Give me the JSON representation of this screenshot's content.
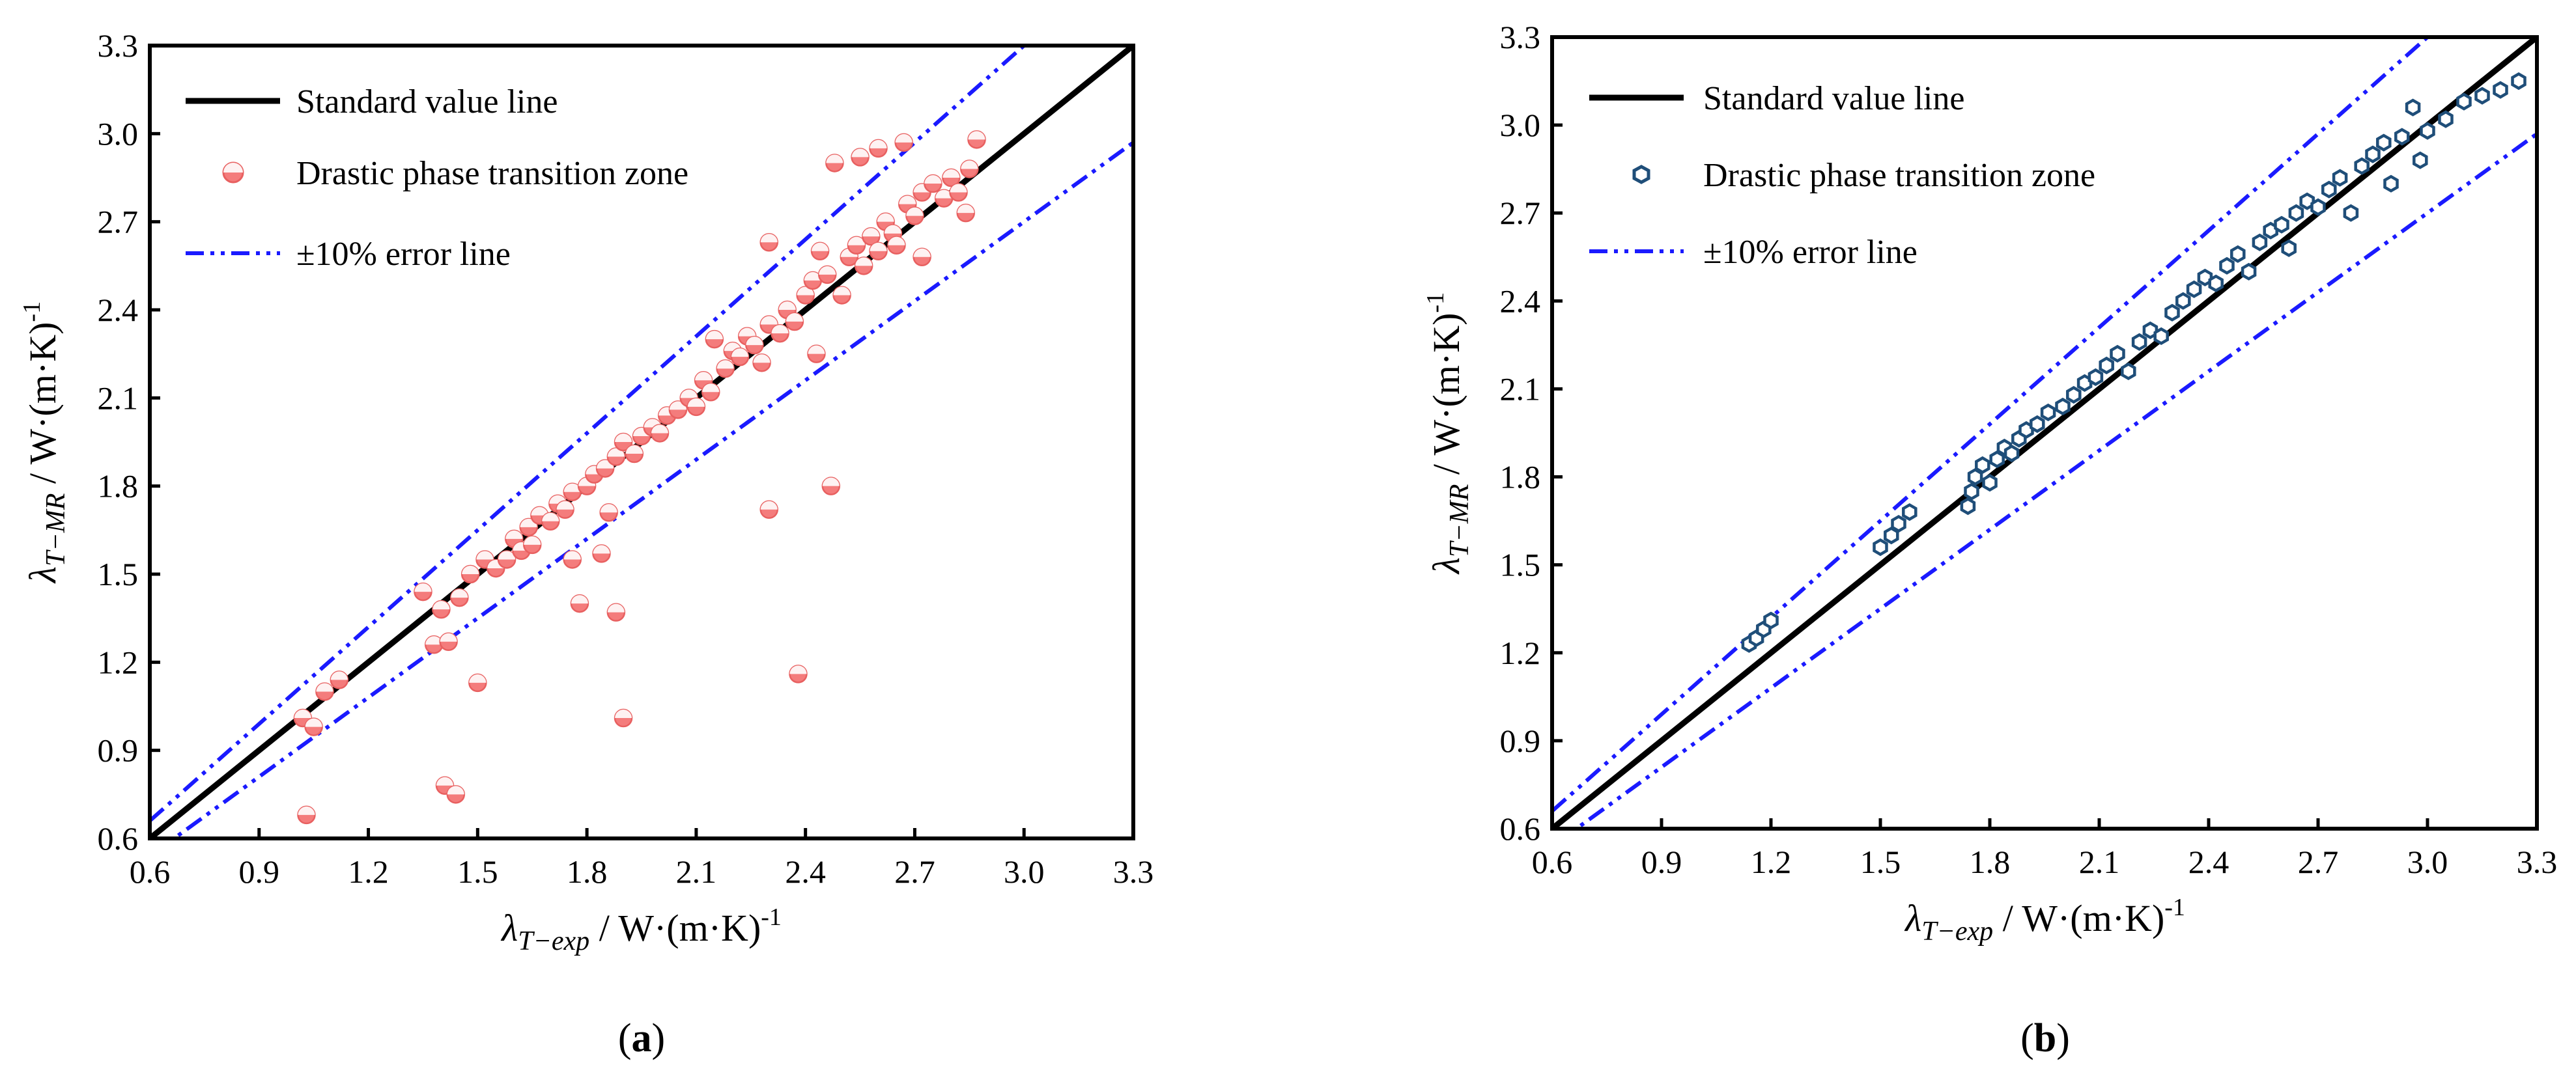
{
  "chart_data": [
    {
      "panel_label": "a",
      "type": "scatter",
      "xlabel": {
        "sym": "λ",
        "sub": "T−exp",
        "unit": " / W·(m·K)",
        "sup": "-1"
      },
      "ylabel": {
        "sym": "λ",
        "sub": "T−MR",
        "unit": " / W·(m·K)",
        "sup": "-1"
      },
      "xlim": [
        0.6,
        3.3
      ],
      "ylim": [
        0.6,
        3.3
      ],
      "ticks": [
        "0.6",
        "0.9",
        "1.2",
        "1.5",
        "1.8",
        "2.1",
        "2.4",
        "2.7",
        "3.0",
        "3.3"
      ],
      "grid": false,
      "legend_position": "top-left",
      "legend": [
        "Standard value line",
        "Drastic phase transition zone",
        "±10% error line"
      ],
      "colors": {
        "points_fill": "#f47c7c",
        "points_edge": "#e86060",
        "standard": "#000000",
        "error": "#1a1aff"
      },
      "series": [
        {
          "name": "Drastic phase transition zone",
          "points": [
            [
              1.03,
              0.68
            ],
            [
              1.02,
              1.01
            ],
            [
              1.05,
              0.98
            ],
            [
              1.08,
              1.1
            ],
            [
              1.12,
              1.14
            ],
            [
              1.35,
              1.44
            ],
            [
              1.38,
              1.26
            ],
            [
              1.42,
              1.27
            ],
            [
              1.41,
              0.78
            ],
            [
              1.44,
              0.75
            ],
            [
              1.4,
              1.38
            ],
            [
              1.45,
              1.42
            ],
            [
              1.5,
              1.13
            ],
            [
              1.48,
              1.5
            ],
            [
              1.52,
              1.55
            ],
            [
              1.55,
              1.52
            ],
            [
              1.58,
              1.55
            ],
            [
              1.6,
              1.62
            ],
            [
              1.62,
              1.58
            ],
            [
              1.64,
              1.66
            ],
            [
              1.65,
              1.6
            ],
            [
              1.67,
              1.7
            ],
            [
              1.7,
              1.68
            ],
            [
              1.72,
              1.74
            ],
            [
              1.74,
              1.72
            ],
            [
              1.76,
              1.55
            ],
            [
              1.76,
              1.78
            ],
            [
              1.78,
              1.4
            ],
            [
              1.8,
              1.8
            ],
            [
              1.82,
              1.84
            ],
            [
              1.84,
              1.57
            ],
            [
              1.85,
              1.86
            ],
            [
              1.86,
              1.71
            ],
            [
              1.88,
              1.37
            ],
            [
              1.88,
              1.9
            ],
            [
              1.9,
              1.01
            ],
            [
              1.9,
              1.95
            ],
            [
              1.93,
              1.91
            ],
            [
              1.95,
              1.97
            ],
            [
              1.98,
              2.0
            ],
            [
              2.0,
              1.98
            ],
            [
              2.02,
              2.04
            ],
            [
              2.05,
              2.06
            ],
            [
              2.08,
              2.1
            ],
            [
              2.1,
              2.07
            ],
            [
              2.12,
              2.16
            ],
            [
              2.14,
              2.12
            ],
            [
              2.15,
              2.3
            ],
            [
              2.18,
              2.2
            ],
            [
              2.2,
              2.26
            ],
            [
              2.22,
              2.24
            ],
            [
              2.24,
              2.31
            ],
            [
              2.26,
              2.28
            ],
            [
              2.28,
              2.22
            ],
            [
              2.3,
              2.35
            ],
            [
              2.3,
              2.63
            ],
            [
              2.3,
              1.72
            ],
            [
              2.33,
              2.32
            ],
            [
              2.35,
              2.4
            ],
            [
              2.37,
              2.36
            ],
            [
              2.38,
              1.16
            ],
            [
              2.4,
              2.45
            ],
            [
              2.42,
              2.5
            ],
            [
              2.43,
              2.25
            ],
            [
              2.44,
              2.6
            ],
            [
              2.46,
              2.52
            ],
            [
              2.47,
              1.8
            ],
            [
              2.48,
              2.9
            ],
            [
              2.5,
              2.45
            ],
            [
              2.52,
              2.58
            ],
            [
              2.54,
              2.62
            ],
            [
              2.55,
              2.92
            ],
            [
              2.56,
              2.55
            ],
            [
              2.58,
              2.65
            ],
            [
              2.6,
              2.95
            ],
            [
              2.6,
              2.6
            ],
            [
              2.62,
              2.7
            ],
            [
              2.64,
              2.66
            ],
            [
              2.65,
              2.62
            ],
            [
              2.67,
              2.97
            ],
            [
              2.68,
              2.76
            ],
            [
              2.7,
              2.72
            ],
            [
              2.72,
              2.58
            ],
            [
              2.72,
              2.8
            ],
            [
              2.75,
              2.83
            ],
            [
              2.78,
              2.78
            ],
            [
              2.8,
              2.85
            ],
            [
              2.82,
              2.8
            ],
            [
              2.84,
              2.73
            ],
            [
              2.85,
              2.88
            ],
            [
              2.87,
              2.98
            ]
          ]
        }
      ]
    },
    {
      "panel_label": "b",
      "type": "scatter",
      "xlabel": {
        "sym": "λ",
        "sub": "T−exp",
        "unit": " / W·(m·K)",
        "sup": "-1"
      },
      "ylabel": {
        "sym": "λ",
        "sub": "T−MR",
        "unit": " / W·(m·K)",
        "sup": "-1"
      },
      "xlim": [
        0.6,
        3.3
      ],
      "ylim": [
        0.6,
        3.3
      ],
      "ticks": [
        "0.6",
        "0.9",
        "1.2",
        "1.5",
        "1.8",
        "2.1",
        "2.4",
        "2.7",
        "3.0",
        "3.3"
      ],
      "grid": false,
      "legend_position": "top-left",
      "legend": [
        "Standard value line",
        "Drastic phase transition zone",
        "±10% error line"
      ],
      "colors": {
        "points_fill": "#ffffff",
        "points_edge": "#1f4e79",
        "standard": "#000000",
        "error": "#1a1aff"
      },
      "series": [
        {
          "name": "Drastic phase transition zone",
          "points": [
            [
              1.14,
              1.23
            ],
            [
              1.16,
              1.25
            ],
            [
              1.18,
              1.28
            ],
            [
              1.2,
              1.31
            ],
            [
              1.5,
              1.56
            ],
            [
              1.53,
              1.6
            ],
            [
              1.55,
              1.64
            ],
            [
              1.58,
              1.68
            ],
            [
              1.74,
              1.7
            ],
            [
              1.75,
              1.75
            ],
            [
              1.76,
              1.8
            ],
            [
              1.78,
              1.84
            ],
            [
              1.8,
              1.78
            ],
            [
              1.82,
              1.86
            ],
            [
              1.84,
              1.9
            ],
            [
              1.86,
              1.88
            ],
            [
              1.88,
              1.93
            ],
            [
              1.9,
              1.96
            ],
            [
              1.93,
              1.98
            ],
            [
              1.96,
              2.02
            ],
            [
              2.0,
              2.04
            ],
            [
              2.03,
              2.08
            ],
            [
              2.06,
              2.12
            ],
            [
              2.09,
              2.14
            ],
            [
              2.12,
              2.18
            ],
            [
              2.15,
              2.22
            ],
            [
              2.18,
              2.16
            ],
            [
              2.21,
              2.26
            ],
            [
              2.24,
              2.3
            ],
            [
              2.27,
              2.28
            ],
            [
              2.3,
              2.36
            ],
            [
              2.33,
              2.4
            ],
            [
              2.36,
              2.44
            ],
            [
              2.39,
              2.48
            ],
            [
              2.42,
              2.46
            ],
            [
              2.45,
              2.52
            ],
            [
              2.48,
              2.56
            ],
            [
              2.51,
              2.5
            ],
            [
              2.54,
              2.6
            ],
            [
              2.57,
              2.64
            ],
            [
              2.6,
              2.66
            ],
            [
              2.62,
              2.58
            ],
            [
              2.64,
              2.7
            ],
            [
              2.67,
              2.74
            ],
            [
              2.7,
              2.72
            ],
            [
              2.73,
              2.78
            ],
            [
              2.76,
              2.82
            ],
            [
              2.79,
              2.7
            ],
            [
              2.82,
              2.86
            ],
            [
              2.85,
              2.9
            ],
            [
              2.88,
              2.94
            ],
            [
              2.9,
              2.8
            ],
            [
              2.93,
              2.96
            ],
            [
              2.96,
              3.06
            ],
            [
              2.98,
              2.88
            ],
            [
              3.0,
              2.98
            ],
            [
              3.05,
              3.02
            ],
            [
              3.1,
              3.08
            ],
            [
              3.15,
              3.1
            ],
            [
              3.2,
              3.12
            ],
            [
              3.25,
              3.15
            ]
          ]
        }
      ]
    }
  ],
  "captions": [
    "a",
    "b"
  ]
}
